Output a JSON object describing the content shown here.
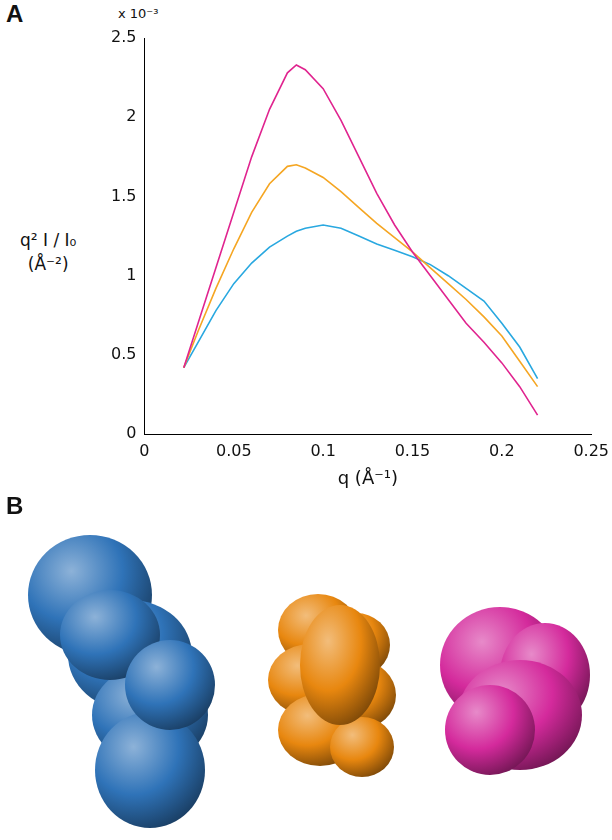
{
  "panels": [
    "A",
    "B"
  ],
  "chart_data": {
    "type": "line",
    "x_label": "q (Å⁻¹)",
    "y_label": [
      "q² I / I₀",
      "(Å⁻²)"
    ],
    "annotations": [
      "x 10⁻³"
    ],
    "x": [
      0.022,
      0.03,
      0.04,
      0.05,
      0.06,
      0.07,
      0.08,
      0.085,
      0.09,
      0.1,
      0.11,
      0.12,
      0.13,
      0.14,
      0.15,
      0.16,
      0.17,
      0.18,
      0.19,
      0.2,
      0.21,
      0.22
    ],
    "series": [
      {
        "color": "#e0248f",
        "values": [
          0.42,
          0.7,
          1.05,
          1.4,
          1.75,
          2.05,
          2.28,
          2.33,
          2.3,
          2.18,
          1.98,
          1.75,
          1.52,
          1.32,
          1.15,
          1.0,
          0.85,
          0.7,
          0.58,
          0.45,
          0.3,
          0.12
        ]
      },
      {
        "color": "#f5a623",
        "values": [
          0.42,
          0.65,
          0.92,
          1.17,
          1.4,
          1.58,
          1.69,
          1.7,
          1.68,
          1.62,
          1.53,
          1.43,
          1.33,
          1.24,
          1.15,
          1.05,
          0.95,
          0.85,
          0.74,
          0.62,
          0.46,
          0.3
        ]
      },
      {
        "color": "#29a8e0",
        "values": [
          0.42,
          0.58,
          0.78,
          0.95,
          1.08,
          1.18,
          1.25,
          1.28,
          1.3,
          1.32,
          1.3,
          1.25,
          1.2,
          1.16,
          1.12,
          1.07,
          1.0,
          0.92,
          0.84,
          0.7,
          0.55,
          0.35
        ]
      }
    ],
    "xlim": [
      0,
      0.25
    ],
    "xticks": [
      0,
      0.05,
      0.1,
      0.15,
      0.2,
      0.25
    ],
    "ylim": [
      0,
      2.5
    ],
    "yticks": [
      0,
      0.5,
      1,
      1.5,
      2,
      2.5
    ],
    "grid": false
  },
  "models": [
    {
      "color": "#2f73b8"
    },
    {
      "color": "#e8870f"
    },
    {
      "color": "#d42a9c"
    }
  ]
}
